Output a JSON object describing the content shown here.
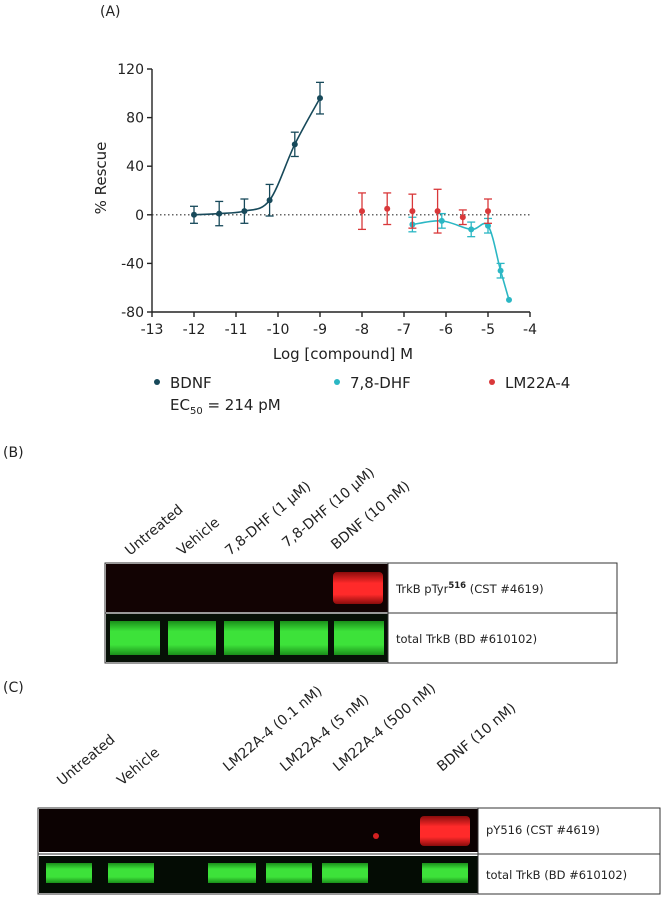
{
  "chart_data": {
    "type": "scatter",
    "panel_label": "(A)",
    "x_label": "Log [compound] M",
    "y_label": "% Rescue",
    "xlim": [
      -13,
      -4
    ],
    "xticks": [
      -13,
      -12,
      -11,
      -10,
      -9,
      -8,
      -7,
      -6,
      -5,
      -4
    ],
    "ylim": [
      -80,
      120
    ],
    "yticks": [
      -80,
      -40,
      0,
      40,
      80,
      120
    ],
    "reference_line": 0,
    "series": [
      {
        "name": "BDNF",
        "color": "#17495a",
        "x": [
          -12,
          -11.4,
          -10.8,
          -10.2,
          -9.6,
          -9
        ],
        "values": [
          0,
          1,
          3,
          12,
          58,
          96
        ],
        "errors": [
          7,
          10,
          10,
          13,
          10,
          13
        ]
      },
      {
        "name": "7,8-DHF",
        "color": "#2bb7c4",
        "x": [
          -6.8,
          -6.1,
          -5.4,
          -5,
          -4.7,
          -4.5
        ],
        "values": [
          -8,
          -5,
          -12,
          -9,
          -46,
          -70
        ],
        "errors": [
          6,
          6,
          6,
          6,
          6,
          0
        ]
      },
      {
        "name": "LM22A-4",
        "color": "#d9383a",
        "x": [
          -8,
          -7.4,
          -6.8,
          -6.2,
          -5.6,
          -5
        ],
        "values": [
          3,
          5,
          3,
          3,
          -2,
          3
        ],
        "errors": [
          15,
          13,
          14,
          18,
          6,
          10
        ]
      }
    ],
    "annotation": {
      "prefix": "EC",
      "subscript": "50",
      "suffix": " = 214 pM"
    }
  },
  "figure": {
    "panel_b": {
      "label": "(B)",
      "lanes": [
        "Untreated",
        "Vehicle",
        "7,8-DHF (1 µM)",
        "7,8-DHF (10 µM)",
        "BDNF (10 nM)"
      ],
      "row1": {
        "prefix": "TrkB pTyr",
        "superscript": "516",
        "suffix": " (CST #4619)"
      },
      "row2": "total TrkB (BD #610102)"
    },
    "panel_c": {
      "label": "(C)",
      "lanes": [
        "Untreated",
        "Vehicle",
        "LM22A-4 (0.1 nM)",
        "LM22A-4 (5 nM)",
        "LM22A-4 (500 nM)",
        "BDNF (10 nM)"
      ],
      "row1": "pY516 (CST #4619)",
      "row2": "total TrkB (BD #610102)"
    }
  }
}
